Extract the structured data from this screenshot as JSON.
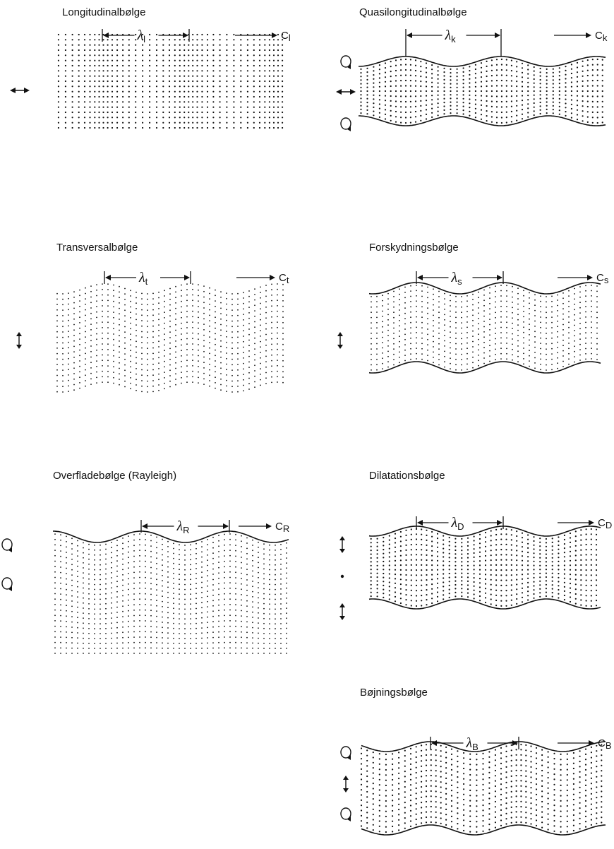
{
  "panels": [
    {
      "title": "Longitudinalbølge",
      "wavelength": {
        "symbol": "λ",
        "sub": "l"
      },
      "velocity": {
        "symbol": "C",
        "sub": "l"
      }
    },
    {
      "title": "Quasilongitudinalbølge",
      "wavelength": {
        "symbol": "λ",
        "sub": "k"
      },
      "velocity": {
        "symbol": "C",
        "sub": "k"
      }
    },
    {
      "title": "Transversalbølge",
      "wavelength": {
        "symbol": "λ",
        "sub": "t"
      },
      "velocity": {
        "symbol": "C",
        "sub": "t"
      }
    },
    {
      "title": "Forskydningsbølge",
      "wavelength": {
        "symbol": "λ",
        "sub": "s"
      },
      "velocity": {
        "symbol": "C",
        "sub": "s"
      }
    },
    {
      "title": "Overfladebølge (Rayleigh)",
      "wavelength": {
        "symbol": "λ",
        "sub": "R"
      },
      "velocity": {
        "symbol": "C",
        "sub": "R"
      }
    },
    {
      "title": "Dilatationsbølge",
      "wavelength": {
        "symbol": "λ",
        "sub": "D"
      },
      "velocity": {
        "symbol": "C",
        "sub": "D"
      }
    },
    {
      "title": "Bøjningsbølge",
      "wavelength": {
        "symbol": "λ",
        "sub": "B"
      },
      "velocity": {
        "symbol": "C",
        "sub": "B"
      }
    }
  ]
}
